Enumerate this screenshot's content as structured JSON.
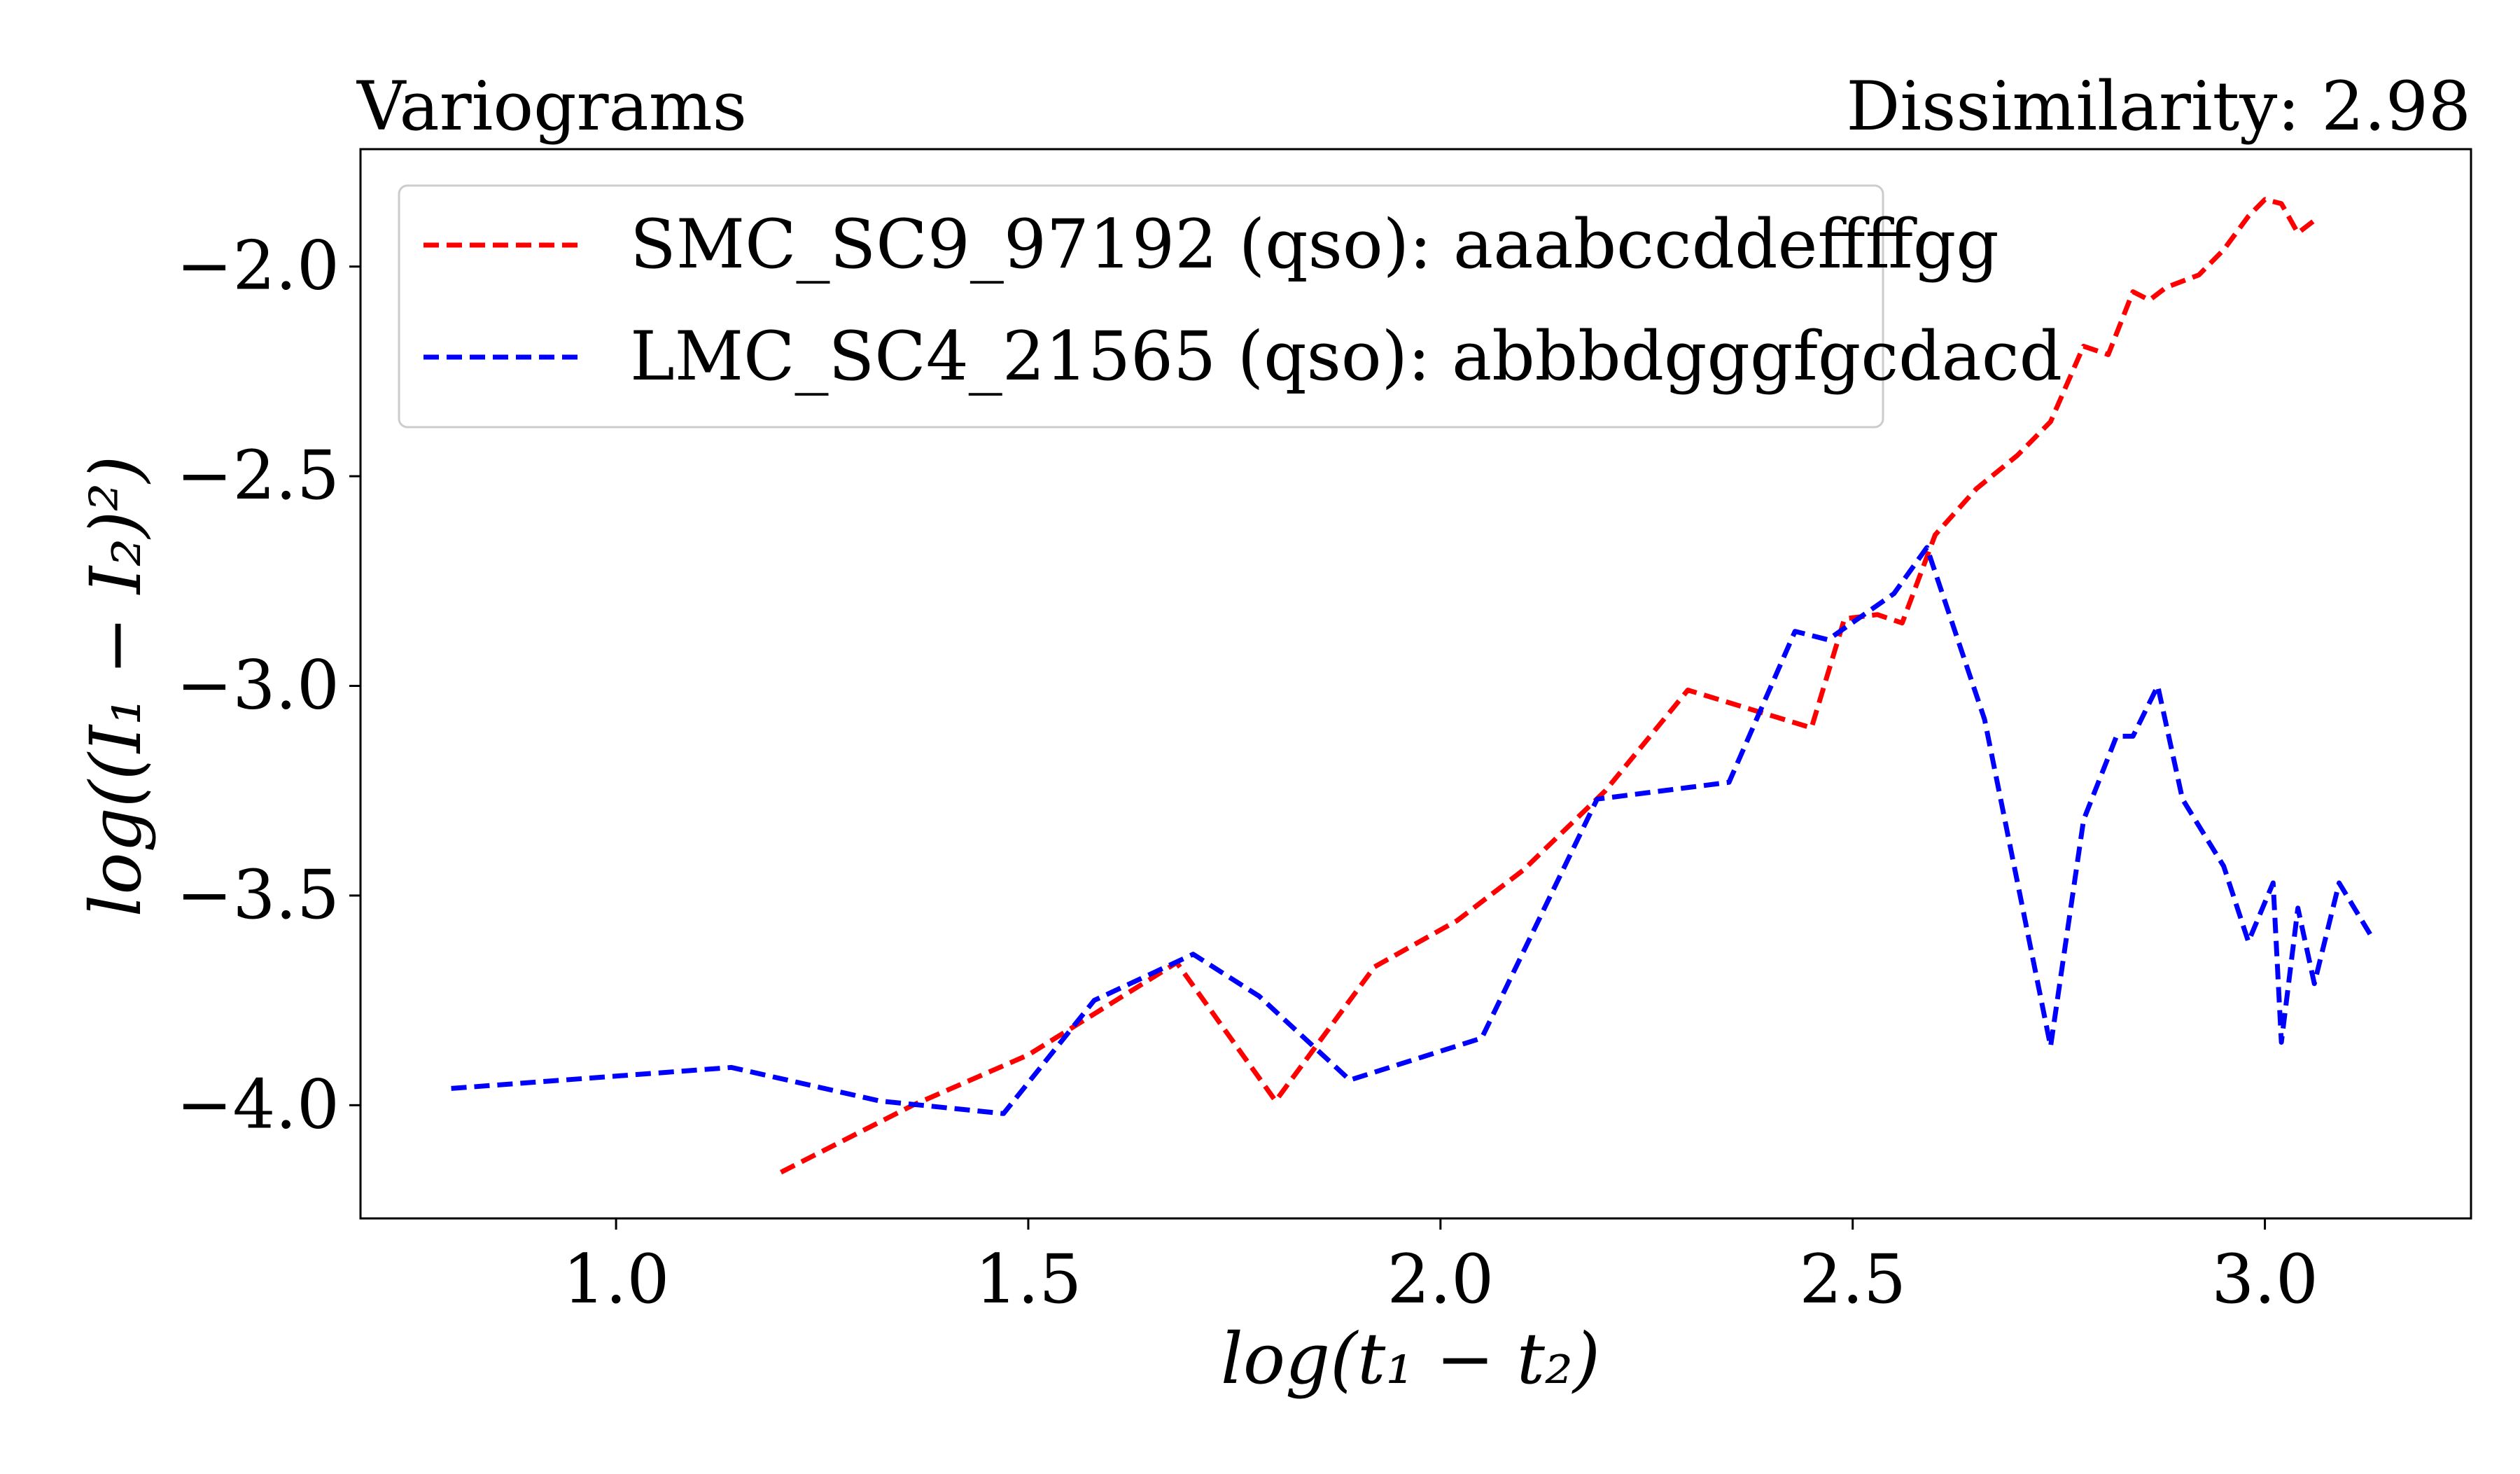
{
  "chart_data": {
    "type": "line",
    "title": "Variograms",
    "subtitle": "Dissimilarity: 2.98",
    "xlabel": "log(t₁ − t₂)",
    "ylabel": "log((I₁ − I₂)²)",
    "xlim": [
      0.69,
      3.25
    ],
    "ylim": [
      -4.27,
      -1.72
    ],
    "xticks": [
      1.0,
      1.5,
      2.0,
      2.5,
      3.0
    ],
    "xtick_labels": [
      "1.0",
      "1.5",
      "2.0",
      "2.5",
      "3.0"
    ],
    "yticks": [
      -2.0,
      -2.5,
      -3.0,
      -3.5,
      -4.0
    ],
    "ytick_labels": [
      "−2.0",
      "−2.5",
      "−3.0",
      "−3.5",
      "−4.0"
    ],
    "grid": false,
    "legend_position": "top-left",
    "series": [
      {
        "name": "SMC_SC9_97192 (qso): aaabccddeffffgg",
        "color": "#ff0000",
        "style": "dashed",
        "points": [
          [
            1.2,
            -4.16
          ],
          [
            1.36,
            -4.0
          ],
          [
            1.5,
            -3.88
          ],
          [
            1.68,
            -3.66
          ],
          [
            1.8,
            -3.99
          ],
          [
            1.92,
            -3.67
          ],
          [
            2.02,
            -3.56
          ],
          [
            2.1,
            -3.44
          ],
          [
            2.2,
            -3.25
          ],
          [
            2.3,
            -3.01
          ],
          [
            2.45,
            -3.1
          ],
          [
            2.49,
            -2.84
          ],
          [
            2.53,
            -2.83
          ],
          [
            2.56,
            -2.85
          ],
          [
            2.6,
            -2.64
          ],
          [
            2.65,
            -2.53
          ],
          [
            2.7,
            -2.45
          ],
          [
            2.74,
            -2.37
          ],
          [
            2.78,
            -2.19
          ],
          [
            2.81,
            -2.21
          ],
          [
            2.84,
            -2.06
          ],
          [
            2.86,
            -2.08
          ],
          [
            2.88,
            -2.05
          ],
          [
            2.92,
            -2.02
          ],
          [
            2.95,
            -1.96
          ],
          [
            2.98,
            -1.88
          ],
          [
            3.0,
            -1.84
          ],
          [
            3.02,
            -1.85
          ],
          [
            3.04,
            -1.92
          ],
          [
            3.06,
            -1.89
          ]
        ]
      },
      {
        "name": "LMC_SC4_21565 (qso): abbbdgggfgcdacd",
        "color": "#0000ff",
        "style": "dashed",
        "points": [
          [
            0.8,
            -3.96
          ],
          [
            1.14,
            -3.91
          ],
          [
            1.32,
            -3.99
          ],
          [
            1.47,
            -4.02
          ],
          [
            1.58,
            -3.75
          ],
          [
            1.7,
            -3.64
          ],
          [
            1.78,
            -3.74
          ],
          [
            1.89,
            -3.94
          ],
          [
            2.05,
            -3.84
          ],
          [
            2.19,
            -3.27
          ],
          [
            2.35,
            -3.23
          ],
          [
            2.43,
            -2.87
          ],
          [
            2.47,
            -2.89
          ],
          [
            2.55,
            -2.78
          ],
          [
            2.59,
            -2.67
          ],
          [
            2.66,
            -3.08
          ],
          [
            2.74,
            -3.86
          ],
          [
            2.78,
            -3.32
          ],
          [
            2.82,
            -3.12
          ],
          [
            2.84,
            -3.12
          ],
          [
            2.87,
            -3.0
          ],
          [
            2.9,
            -3.27
          ],
          [
            2.95,
            -3.43
          ],
          [
            2.98,
            -3.61
          ],
          [
            3.01,
            -3.47
          ],
          [
            3.02,
            -3.85
          ],
          [
            3.04,
            -3.53
          ],
          [
            3.06,
            -3.71
          ],
          [
            3.09,
            -3.47
          ],
          [
            3.13,
            -3.6
          ]
        ]
      }
    ]
  }
}
